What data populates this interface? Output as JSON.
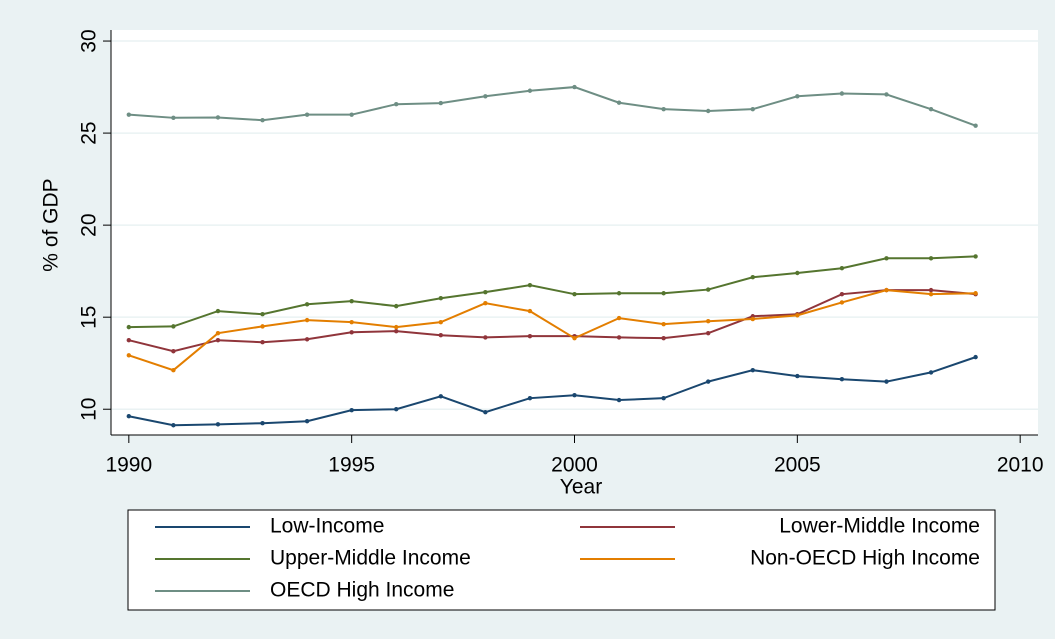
{
  "chart_data": {
    "type": "line",
    "xlabel": "Year",
    "ylabel": "% of GDP",
    "x": [
      1990,
      1991,
      1992,
      1993,
      1994,
      1995,
      1996,
      1997,
      1998,
      1999,
      2000,
      2001,
      2002,
      2003,
      2004,
      2005,
      2006,
      2007,
      2008,
      2009
    ],
    "xlim": [
      1989.6,
      2010.4
    ],
    "xticks": [
      1990,
      1995,
      2000,
      2005,
      2010
    ],
    "ylim": [
      8.6,
      30.6
    ],
    "yticks": [
      10,
      15,
      20,
      25,
      30
    ],
    "grid": true,
    "series": [
      {
        "name": "Low-Income",
        "color": "#1a476f",
        "values": [
          9.62,
          9.13,
          9.18,
          9.24,
          9.35,
          9.95,
          10.0,
          10.7,
          9.84,
          10.6,
          10.76,
          10.5,
          10.6,
          11.5,
          12.12,
          11.8,
          11.63,
          11.5,
          12.0,
          12.83
        ]
      },
      {
        "name": "Lower-Middle Income",
        "color": "#90353b",
        "values": [
          13.75,
          13.15,
          13.75,
          13.64,
          13.8,
          14.18,
          14.24,
          14.02,
          13.9,
          13.97,
          13.97,
          13.9,
          13.86,
          14.13,
          15.05,
          15.16,
          16.25,
          16.47,
          16.47,
          16.25
        ]
      },
      {
        "name": "Upper-Middle Income",
        "color": "#55752f",
        "values": [
          14.46,
          14.5,
          15.33,
          15.16,
          15.7,
          15.87,
          15.6,
          16.03,
          16.36,
          16.74,
          16.25,
          16.3,
          16.3,
          16.5,
          17.17,
          17.4,
          17.66,
          18.2,
          18.2,
          18.3
        ]
      },
      {
        "name": "Non-OECD High Income",
        "color": "#e37e00",
        "values": [
          12.93,
          12.12,
          14.13,
          14.5,
          14.84,
          14.73,
          14.46,
          14.73,
          15.76,
          15.33,
          13.86,
          14.95,
          14.62,
          14.78,
          14.9,
          15.1,
          15.8,
          16.47,
          16.25,
          16.3
        ]
      },
      {
        "name": "OECD High Income",
        "color": "#6e8e84",
        "values": [
          26.0,
          25.83,
          25.85,
          25.7,
          26.0,
          26.0,
          26.57,
          26.63,
          27.0,
          27.3,
          27.5,
          26.65,
          26.3,
          26.2,
          26.3,
          27.0,
          27.15,
          27.1,
          26.3,
          25.4
        ]
      }
    ]
  }
}
